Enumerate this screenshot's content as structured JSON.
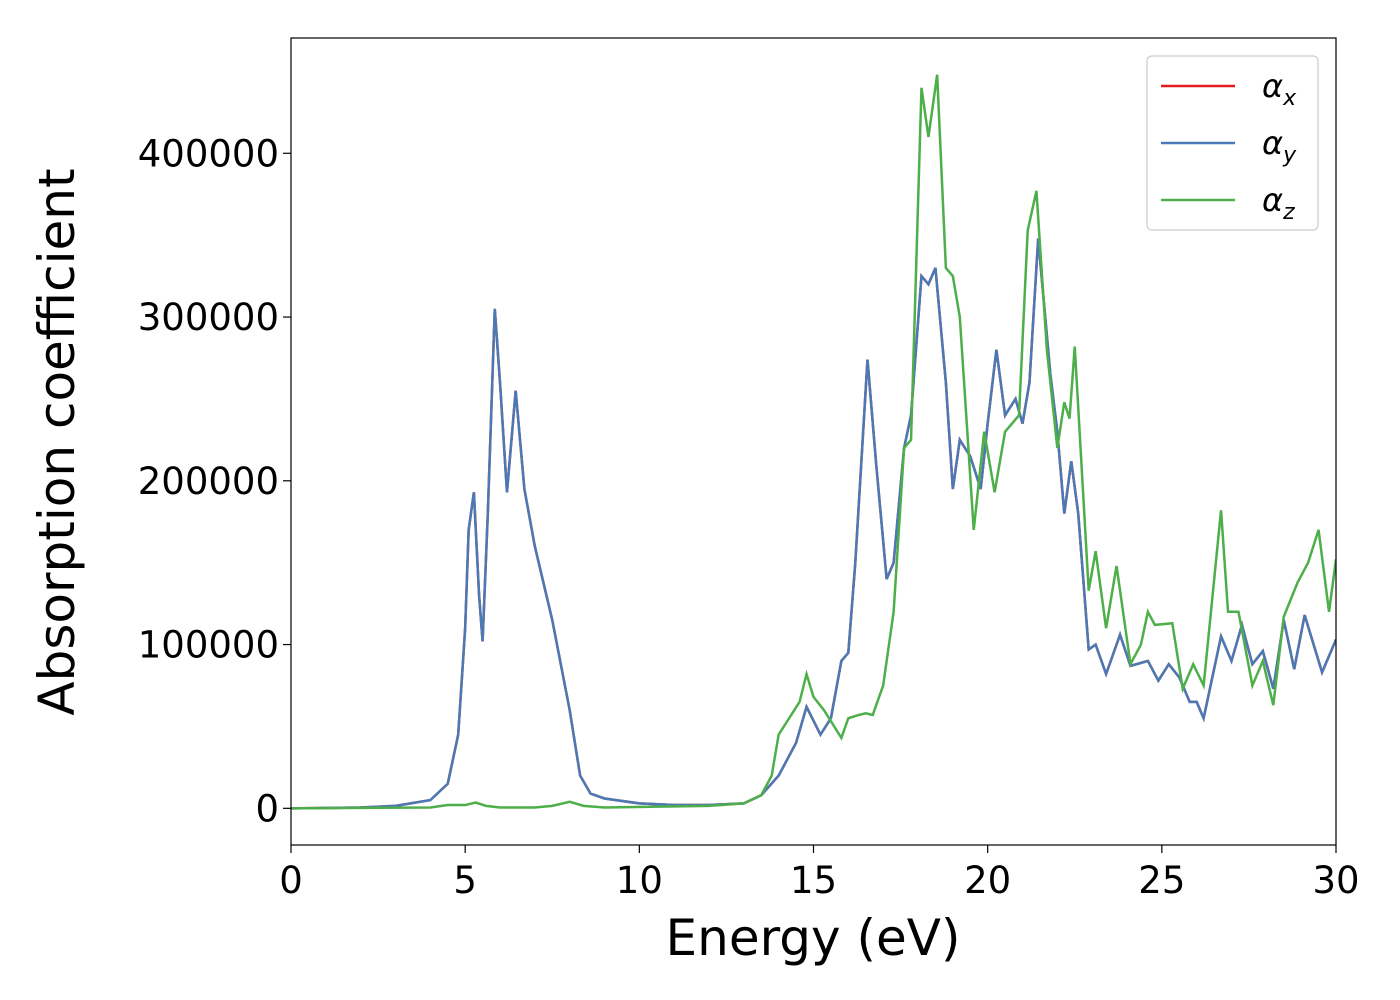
{
  "chart_data": {
    "type": "line",
    "xlabel": "Energy (eV)",
    "ylabel": "Absorption coefficient",
    "xlim": [
      0,
      30
    ],
    "ylim": [
      -22400,
      470400
    ],
    "xticks": [
      0,
      5,
      10,
      15,
      20,
      25,
      30
    ],
    "yticks": [
      0,
      100000,
      200000,
      300000,
      400000
    ],
    "legend": "upper right",
    "series": [
      {
        "name": "αx",
        "color": "#e41a1c",
        "x": [
          0,
          2,
          3,
          4,
          4.5,
          4.8,
          5.0,
          5.1,
          5.25,
          5.4,
          5.5,
          5.65,
          5.85,
          6.0,
          6.2,
          6.45,
          6.7,
          7.0,
          7.5,
          8.0,
          8.3,
          8.6,
          9,
          10,
          11,
          12,
          13,
          13.5,
          14,
          14.5,
          14.8,
          15.2,
          15.5,
          15.8,
          16.0,
          16.2,
          16.55,
          16.8,
          17.1,
          17.3,
          17.6,
          17.8,
          18.1,
          18.3,
          18.5,
          18.8,
          19.0,
          19.2,
          19.5,
          19.8,
          20.0,
          20.25,
          20.5,
          20.8,
          21.0,
          21.2,
          21.45,
          21.8,
          22.0,
          22.2,
          22.4,
          22.6,
          22.9,
          23.1,
          23.4,
          23.8,
          24.1,
          24.6,
          24.9,
          25.2,
          25.5,
          25.8,
          26.0,
          26.2,
          26.7,
          27.0,
          27.3,
          27.6,
          27.9,
          28.2,
          28.5,
          28.8,
          29.1,
          29.6,
          30
        ],
        "values": [
          0,
          500,
          1500,
          5000,
          15000,
          45000,
          110000,
          170000,
          193000,
          130000,
          102000,
          180000,
          305000,
          260000,
          193000,
          255000,
          195000,
          160000,
          115000,
          60000,
          20000,
          9000,
          6000,
          3000,
          2000,
          2000,
          3000,
          8000,
          20000,
          40000,
          62000,
          45000,
          55000,
          90000,
          95000,
          150000,
          274000,
          210000,
          140000,
          150000,
          220000,
          240000,
          325000,
          320000,
          330000,
          260000,
          195000,
          225000,
          215000,
          195000,
          235000,
          280000,
          240000,
          250000,
          235000,
          260000,
          348000,
          265000,
          230000,
          180000,
          212000,
          180000,
          97000,
          100000,
          82000,
          106000,
          87000,
          90000,
          78000,
          88000,
          80000,
          65000,
          65000,
          55000,
          105000,
          90000,
          112000,
          88000,
          96000,
          73000,
          115000,
          85000,
          118000,
          83000,
          103000
        ]
      },
      {
        "name": "αy",
        "color": "#4a7ab5",
        "x": [
          0,
          2,
          3,
          4,
          4.5,
          4.8,
          5.0,
          5.1,
          5.25,
          5.4,
          5.5,
          5.65,
          5.85,
          6.0,
          6.2,
          6.45,
          6.7,
          7.0,
          7.5,
          8.0,
          8.3,
          8.6,
          9,
          10,
          11,
          12,
          13,
          13.5,
          14,
          14.5,
          14.8,
          15.2,
          15.5,
          15.8,
          16.0,
          16.2,
          16.55,
          16.8,
          17.1,
          17.3,
          17.6,
          17.8,
          18.1,
          18.3,
          18.5,
          18.8,
          19.0,
          19.2,
          19.5,
          19.8,
          20.0,
          20.25,
          20.5,
          20.8,
          21.0,
          21.2,
          21.45,
          21.8,
          22.0,
          22.2,
          22.4,
          22.6,
          22.9,
          23.1,
          23.4,
          23.8,
          24.1,
          24.6,
          24.9,
          25.2,
          25.5,
          25.8,
          26.0,
          26.2,
          26.7,
          27.0,
          27.3,
          27.6,
          27.9,
          28.2,
          28.5,
          28.8,
          29.1,
          29.6,
          30
        ],
        "values": [
          0,
          500,
          1500,
          5000,
          15000,
          45000,
          110000,
          170000,
          193000,
          130000,
          102000,
          180000,
          305000,
          260000,
          193000,
          255000,
          195000,
          160000,
          115000,
          60000,
          20000,
          9000,
          6000,
          3000,
          2000,
          2000,
          3000,
          8000,
          20000,
          40000,
          62000,
          45000,
          55000,
          90000,
          95000,
          150000,
          274000,
          210000,
          140000,
          150000,
          220000,
          240000,
          325000,
          320000,
          330000,
          260000,
          195000,
          225000,
          215000,
          195000,
          235000,
          280000,
          240000,
          250000,
          235000,
          260000,
          348000,
          265000,
          230000,
          180000,
          212000,
          180000,
          97000,
          100000,
          82000,
          106000,
          87000,
          90000,
          78000,
          88000,
          80000,
          65000,
          65000,
          55000,
          105000,
          90000,
          112000,
          88000,
          96000,
          73000,
          115000,
          85000,
          118000,
          83000,
          103000
        ]
      },
      {
        "name": "αz",
        "color": "#4daf4a",
        "x": [
          0,
          4,
          4.5,
          5,
          5.3,
          5.6,
          6,
          7,
          7.5,
          8.0,
          8.4,
          9,
          12,
          13,
          13.5,
          13.8,
          14.0,
          14.3,
          14.6,
          14.8,
          15.0,
          15.3,
          15.8,
          16.0,
          16.3,
          16.5,
          16.7,
          17.0,
          17.3,
          17.6,
          17.8,
          18.1,
          18.3,
          18.55,
          18.8,
          19.0,
          19.2,
          19.6,
          19.9,
          20.2,
          20.5,
          20.9,
          21.15,
          21.4,
          21.7,
          22.0,
          22.2,
          22.35,
          22.5,
          22.9,
          23.1,
          23.4,
          23.7,
          24.1,
          24.4,
          24.6,
          24.8,
          25.3,
          25.6,
          25.9,
          26.2,
          26.7,
          26.9,
          27.2,
          27.6,
          27.9,
          28.2,
          28.5,
          28.9,
          29.2,
          29.5,
          29.8,
          30
        ],
        "values": [
          0,
          500,
          2000,
          2000,
          3500,
          1500,
          500,
          500,
          1500,
          4000,
          1500,
          500,
          1500,
          3000,
          8000,
          20000,
          45000,
          55000,
          65000,
          82000,
          68000,
          60000,
          43000,
          55000,
          57000,
          58000,
          57000,
          75000,
          120000,
          220000,
          225000,
          440000,
          410000,
          448000,
          330000,
          325000,
          300000,
          170000,
          230000,
          193000,
          230000,
          240000,
          353000,
          377000,
          280000,
          220000,
          248000,
          238000,
          282000,
          133000,
          157000,
          110000,
          148000,
          88000,
          100000,
          120000,
          112000,
          113000,
          73000,
          88000,
          75000,
          182000,
          120000,
          120000,
          75000,
          90000,
          63000,
          117000,
          138000,
          150000,
          170000,
          120000,
          152000
        ]
      }
    ]
  }
}
